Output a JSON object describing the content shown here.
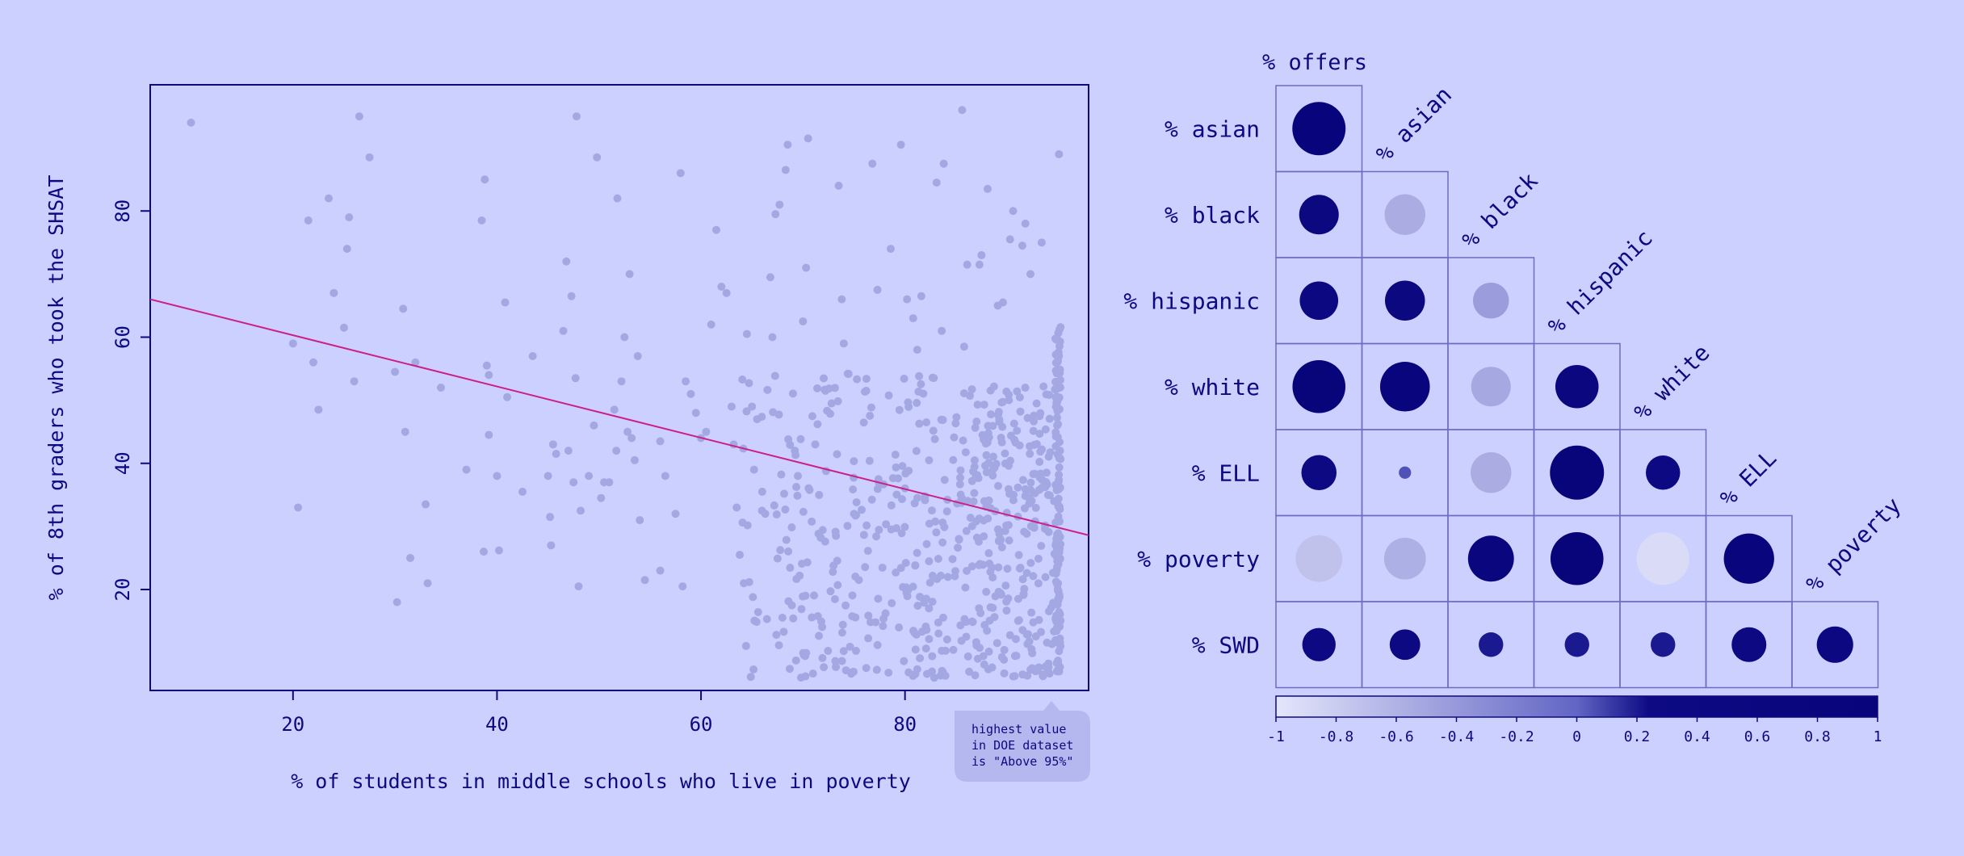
{
  "colors": {
    "background": "#ccd0ff",
    "ink": "#0d0980",
    "point": "#a4a8e2",
    "trend": "#cc1f8a",
    "grid_line": "#6a6dc0",
    "callout_bg": "#b5b8ee",
    "callout_text": "#5a5cb0",
    "negative_end": "#c6c9f7",
    "positive_end": "#08047a"
  },
  "chart_data": [
    {
      "type": "scatter",
      "title": "",
      "xlabel": "% of students in middle schools who live in poverty",
      "ylabel": "% of 8th graders who took the SHSAT",
      "xlim": [
        6,
        98
      ],
      "ylim": [
        4,
        100
      ],
      "xticks": [
        "20",
        "40",
        "60",
        "80"
      ],
      "yticks": [
        "20",
        "40",
        "60",
        "80"
      ],
      "xtick_values": [
        20,
        40,
        60,
        80
      ],
      "ytick_values": [
        20,
        40,
        60,
        80
      ],
      "trendline": {
        "x": [
          6,
          98
        ],
        "y": [
          66.0,
          28.6
        ]
      },
      "callout": {
        "lines": [
          "highest value",
          "in DOE dataset",
          "is \"Above 95%\""
        ],
        "anchor_x": 95
      },
      "points": [
        [
          10,
          94
        ],
        [
          20,
          59
        ],
        [
          20.5,
          33
        ],
        [
          21.5,
          78.5
        ],
        [
          22,
          56
        ],
        [
          22.5,
          48.5
        ],
        [
          23.5,
          82
        ],
        [
          24,
          67
        ],
        [
          25,
          61.5
        ],
        [
          25.3,
          74
        ],
        [
          25.5,
          79
        ],
        [
          26,
          53
        ],
        [
          26.5,
          95
        ],
        [
          27.5,
          88.5
        ],
        [
          30,
          54.5
        ],
        [
          30.2,
          18
        ],
        [
          30.8,
          64.5
        ],
        [
          31,
          45
        ],
        [
          31.5,
          25
        ],
        [
          32,
          56
        ],
        [
          33,
          33.5
        ],
        [
          33.2,
          21
        ],
        [
          34.5,
          52
        ],
        [
          37,
          39
        ],
        [
          38.5,
          78.5
        ],
        [
          38.7,
          26
        ],
        [
          38.8,
          85
        ],
        [
          39,
          55.5
        ],
        [
          39.2,
          54
        ],
        [
          39.2,
          44.5
        ],
        [
          40,
          38
        ],
        [
          40.2,
          26.2
        ],
        [
          40.8,
          65.5
        ],
        [
          41,
          50.5
        ],
        [
          42.5,
          35.5
        ],
        [
          43.5,
          57
        ],
        [
          45,
          38
        ],
        [
          45.2,
          31.5
        ],
        [
          45.3,
          27
        ],
        [
          45.5,
          43
        ],
        [
          45.8,
          41.5
        ],
        [
          46.5,
          61
        ],
        [
          46.8,
          72
        ],
        [
          47,
          42
        ],
        [
          47.3,
          66.5
        ],
        [
          47.5,
          37
        ],
        [
          47.7,
          53.5
        ],
        [
          47.8,
          95
        ],
        [
          48,
          20.5
        ],
        [
          48.2,
          32.5
        ],
        [
          49,
          38
        ],
        [
          49.5,
          46
        ],
        [
          49.8,
          88.5
        ],
        [
          50.2,
          34.5
        ],
        [
          50.5,
          37
        ],
        [
          51,
          37
        ],
        [
          51.5,
          48.5
        ],
        [
          51.7,
          42
        ],
        [
          51.8,
          82
        ],
        [
          52.2,
          53
        ],
        [
          52.5,
          60
        ],
        [
          52.8,
          45
        ],
        [
          53,
          70
        ],
        [
          53.2,
          44
        ],
        [
          53.5,
          40.5
        ],
        [
          53.8,
          57
        ],
        [
          54,
          31
        ],
        [
          54.5,
          21.5
        ],
        [
          56,
          43.5
        ],
        [
          56,
          23
        ],
        [
          56.5,
          38
        ],
        [
          57.5,
          32
        ],
        [
          58,
          86
        ],
        [
          58.2,
          20.5
        ],
        [
          58.5,
          53
        ],
        [
          59,
          51
        ],
        [
          59.5,
          48
        ],
        [
          60,
          44
        ],
        [
          60.5,
          45
        ],
        [
          61,
          62
        ],
        [
          61.5,
          77
        ],
        [
          62,
          68
        ],
        [
          62.5,
          67
        ],
        [
          63,
          49
        ],
        [
          63.2,
          43
        ],
        [
          63.5,
          33
        ],
        [
          63.8,
          25.5
        ],
        [
          64.2,
          21
        ],
        [
          64.5,
          60.5
        ],
        [
          65,
          49
        ],
        [
          65.2,
          39
        ],
        [
          65.5,
          47
        ],
        [
          66,
          35.5
        ],
        [
          66.3,
          32
        ],
        [
          66.8,
          69.5
        ],
        [
          67,
          60
        ],
        [
          67.3,
          79.5
        ],
        [
          67.7,
          81
        ],
        [
          68.3,
          86.5
        ],
        [
          68.5,
          90.5
        ],
        [
          69.2,
          42
        ],
        [
          69.5,
          38
        ],
        [
          70,
          62.5
        ],
        [
          70.3,
          71
        ],
        [
          70.5,
          91.5
        ],
        [
          71.2,
          43
        ],
        [
          72.2,
          51.5
        ],
        [
          72.8,
          49.5
        ],
        [
          73.5,
          84
        ],
        [
          73.8,
          66
        ],
        [
          74,
          59
        ],
        [
          75,
          32
        ],
        [
          76.2,
          51.5
        ],
        [
          76.8,
          87.5
        ],
        [
          77.3,
          67.5
        ],
        [
          78.6,
          74
        ],
        [
          79.6,
          90.5
        ],
        [
          80.2,
          66
        ],
        [
          80.8,
          63
        ],
        [
          81.2,
          58
        ],
        [
          81.6,
          66.5
        ],
        [
          83.1,
          84.5
        ],
        [
          83.6,
          61
        ],
        [
          83.8,
          87.5
        ],
        [
          85.6,
          96
        ],
        [
          85.8,
          58.5
        ],
        [
          86.1,
          71.5
        ],
        [
          87.5,
          73
        ],
        [
          87.3,
          71.5
        ],
        [
          88.1,
          83.5
        ],
        [
          89.1,
          65
        ],
        [
          89.6,
          65.5
        ],
        [
          90.3,
          75.5
        ],
        [
          90.6,
          80
        ],
        [
          91.5,
          74.5
        ],
        [
          91.8,
          78
        ],
        [
          92.3,
          70
        ],
        [
          93.4,
          75
        ],
        [
          95.1,
          89
        ]
      ],
      "cloud": {
        "x_range": [
          64,
          95
        ],
        "count": 560,
        "dense_x": 95,
        "dense_count": 130,
        "note_y_range": [
          6,
          62
        ]
      }
    },
    {
      "type": "heatmap",
      "title": "% offers",
      "row_labels": [
        "% asian",
        "% black",
        "% hispanic",
        "% white",
        "% ELL",
        "% poverty",
        "% SWD"
      ],
      "col_labels": [
        "% asian",
        "% black",
        "% hispanic",
        "% white",
        "% ELL",
        "% poverty"
      ],
      "col0_label": "% offers",
      "values": [
        [
          0.94
        ],
        [
          0.52,
          -0.55
        ],
        [
          0.49,
          0.53,
          -0.43
        ],
        [
          0.93,
          0.82,
          -0.52,
          0.62
        ],
        [
          0.41,
          0.05,
          -0.55,
          0.97,
          0.39
        ],
        [
          -0.72,
          -0.58,
          0.7,
          0.93,
          -0.92,
          0.84
        ],
        [
          0.37,
          0.31,
          0.2,
          0.2,
          0.2,
          0.4,
          0.44
        ]
      ],
      "colorbar": {
        "range": [
          -1,
          1
        ],
        "ticks": [
          "-1",
          "-0.8",
          "-0.6",
          "-0.4",
          "-0.2",
          "0",
          "0.2",
          "0.4",
          "0.6",
          "0.8",
          "1"
        ],
        "tick_values": [
          -1,
          -0.8,
          -0.6,
          -0.4,
          -0.2,
          0,
          0.2,
          0.4,
          0.6,
          0.8,
          1
        ]
      }
    }
  ]
}
